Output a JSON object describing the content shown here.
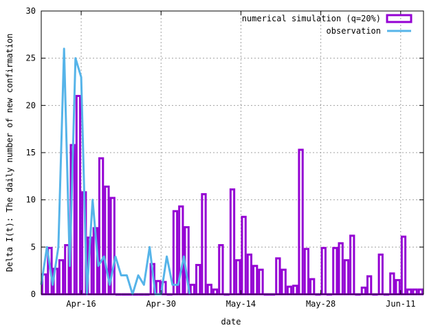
{
  "chart_data": {
    "type": "bar",
    "xlabel": "date",
    "ylabel": "Delta I(t): The daily number of new confirmation",
    "ylim": [
      0,
      30
    ],
    "yticks": [
      0,
      5,
      10,
      15,
      20,
      25,
      30
    ],
    "xlim": [
      "2020-04-09",
      "2020-06-15"
    ],
    "xticks": [
      {
        "date": "2020-04-16",
        "label": "Apr-16"
      },
      {
        "date": "2020-04-30",
        "label": "Apr-30"
      },
      {
        "date": "2020-05-14",
        "label": "May-14"
      },
      {
        "date": "2020-05-28",
        "label": "May-28"
      },
      {
        "date": "2020-06-11",
        "label": "Jun-11"
      }
    ],
    "grid": true,
    "legend_position": "top-right",
    "series": [
      {
        "name": "numerical simulation (q=20%)",
        "style": "bar",
        "color": "#9400d3",
        "x": [
          "2020-04-09",
          "2020-04-10",
          "2020-04-11",
          "2020-04-12",
          "2020-04-13",
          "2020-04-14",
          "2020-04-15",
          "2020-04-16",
          "2020-04-17",
          "2020-04-18",
          "2020-04-19",
          "2020-04-20",
          "2020-04-21",
          "2020-04-22",
          "2020-04-23",
          "2020-04-24",
          "2020-04-25",
          "2020-04-26",
          "2020-04-27",
          "2020-04-28",
          "2020-04-29",
          "2020-04-30",
          "2020-05-01",
          "2020-05-02",
          "2020-05-03",
          "2020-05-04",
          "2020-05-05",
          "2020-05-06",
          "2020-05-07",
          "2020-05-08",
          "2020-05-09",
          "2020-05-10",
          "2020-05-11",
          "2020-05-12",
          "2020-05-13",
          "2020-05-14",
          "2020-05-15",
          "2020-05-16",
          "2020-05-17",
          "2020-05-18",
          "2020-05-19",
          "2020-05-20",
          "2020-05-21",
          "2020-05-22",
          "2020-05-23",
          "2020-05-24",
          "2020-05-25",
          "2020-05-26",
          "2020-05-27",
          "2020-05-28",
          "2020-05-29",
          "2020-05-30",
          "2020-05-31",
          "2020-06-01",
          "2020-06-02",
          "2020-06-03",
          "2020-06-04",
          "2020-06-05",
          "2020-06-06",
          "2020-06-07",
          "2020-06-08",
          "2020-06-09",
          "2020-06-10",
          "2020-06-11",
          "2020-06-12",
          "2020-06-13",
          "2020-06-14"
        ],
        "values": [
          2.1,
          4.9,
          2.7,
          3.6,
          5.2,
          15.8,
          21.0,
          10.8,
          6.0,
          7.0,
          14.4,
          11.4,
          10.2,
          0,
          0,
          0,
          0,
          0,
          0,
          3.2,
          1.4,
          1.3,
          0,
          8.8,
          9.3,
          7.1,
          1.0,
          3.1,
          10.6,
          1.0,
          0.5,
          5.2,
          0,
          11.1,
          3.6,
          8.2,
          4.2,
          3.0,
          2.6,
          0,
          0,
          3.8,
          2.6,
          0.8,
          0.9,
          15.3,
          4.8,
          1.6,
          0,
          4.9,
          0,
          4.9,
          5.4,
          3.6,
          6.2,
          0,
          0.7,
          1.9,
          0,
          4.2,
          0,
          2.2,
          1.5,
          6.1,
          0.5,
          0.5,
          0.5
        ]
      },
      {
        "name": "observation",
        "style": "line",
        "color": "#56b4e9",
        "x": [
          "2020-04-09",
          "2020-04-10",
          "2020-04-11",
          "2020-04-12",
          "2020-04-13",
          "2020-04-14",
          "2020-04-15",
          "2020-04-16",
          "2020-04-17",
          "2020-04-18",
          "2020-04-19",
          "2020-04-20",
          "2020-04-21",
          "2020-04-22",
          "2020-04-23",
          "2020-04-24",
          "2020-04-25",
          "2020-04-26",
          "2020-04-27",
          "2020-04-28",
          "2020-04-29",
          "2020-04-30",
          "2020-05-01",
          "2020-05-02",
          "2020-05-03",
          "2020-05-04",
          "2020-05-05"
        ],
        "values": [
          1,
          5,
          1,
          5,
          26,
          3,
          25,
          23,
          0,
          10,
          3,
          4,
          1,
          4,
          2,
          2,
          0,
          2,
          1,
          5,
          0,
          0,
          4,
          1,
          1,
          4,
          0
        ]
      }
    ]
  }
}
